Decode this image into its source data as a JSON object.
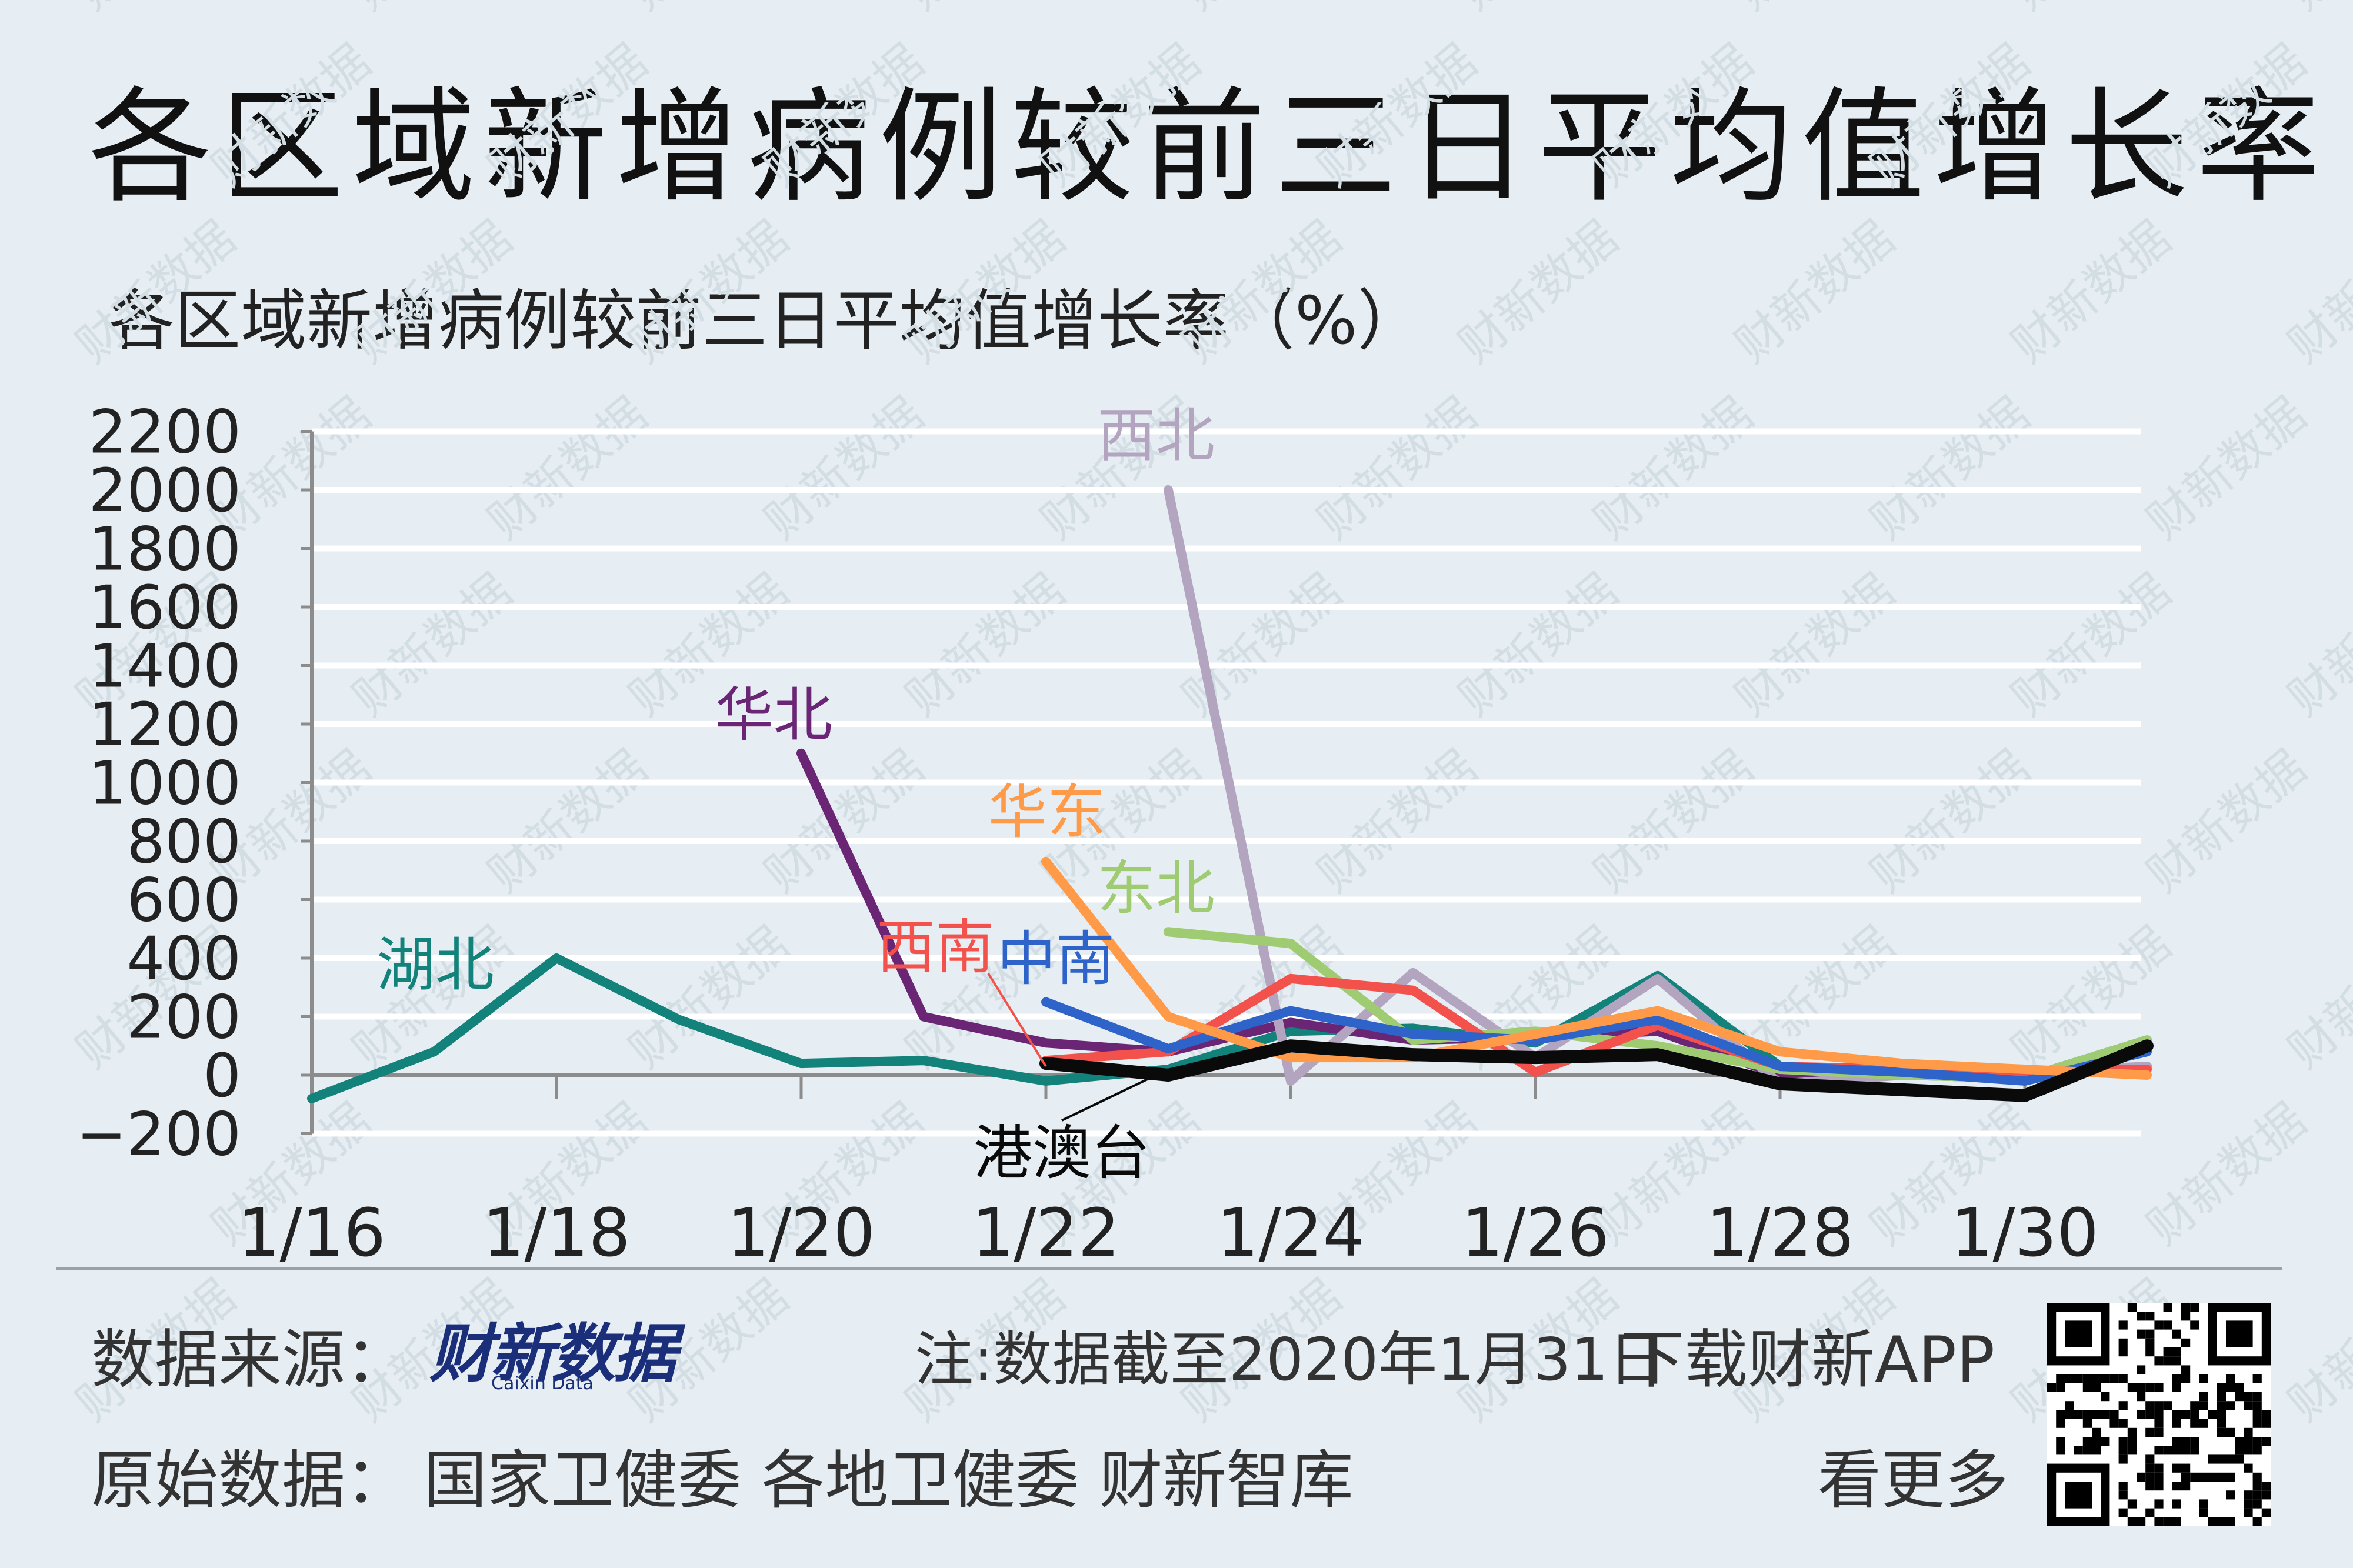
{
  "header": {
    "title": "各区域新增病例较前三日平均值增长率",
    "subtitle": "各区域新增病例较前三日平均值增长率（%）"
  },
  "chart_data": {
    "type": "line",
    "title": "各区域新增病例较前三日平均值增长率",
    "ylabel": "各区域新增病例较前三日平均值增长率（%）",
    "xlabel": "",
    "ylim": [
      -200,
      2200
    ],
    "yticks": [
      -200,
      0,
      200,
      400,
      600,
      800,
      1000,
      1200,
      1400,
      1600,
      1800,
      2000,
      2200
    ],
    "xlim": [
      "1/16",
      "1/31"
    ],
    "xtick_labels": [
      "1/16",
      "1/18",
      "1/20",
      "1/22",
      "1/24",
      "1/26",
      "1/28",
      "1/30"
    ],
    "grid": "horizontal",
    "legend": "inline labels",
    "series": [
      {
        "name": "湖北",
        "color": "#13827a",
        "points": [
          [
            "1/16",
            -80
          ],
          [
            "1/17",
            80
          ],
          [
            "1/18",
            400
          ],
          [
            "1/19",
            190
          ],
          [
            "1/20",
            40
          ],
          [
            "1/21",
            50
          ],
          [
            "1/22",
            -20
          ],
          [
            "1/23",
            20
          ],
          [
            "1/24",
            150
          ],
          [
            "1/25",
            160
          ],
          [
            "1/26",
            110
          ],
          [
            "1/27",
            340
          ],
          [
            "1/28",
            30
          ],
          [
            "1/29",
            0
          ],
          [
            "1/30",
            -10
          ],
          [
            "1/31",
            120
          ]
        ]
      },
      {
        "name": "华北",
        "color": "#6a2574",
        "points": [
          [
            "1/20",
            1100
          ],
          [
            "1/21",
            200
          ],
          [
            "1/22",
            110
          ],
          [
            "1/23",
            80
          ],
          [
            "1/24",
            180
          ],
          [
            "1/25",
            120
          ],
          [
            "1/26",
            130
          ],
          [
            "1/27",
            150
          ],
          [
            "1/28",
            0
          ],
          [
            "1/29",
            20
          ],
          [
            "1/30",
            0
          ],
          [
            "1/31",
            30
          ]
        ]
      },
      {
        "name": "西北",
        "color": "#b3a4bf",
        "points": [
          [
            "1/23",
            2000
          ],
          [
            "1/24",
            -20
          ],
          [
            "1/25",
            350
          ],
          [
            "1/26",
            60
          ],
          [
            "1/27",
            330
          ],
          [
            "1/28",
            -30
          ],
          [
            "1/29",
            0
          ],
          [
            "1/30",
            10
          ],
          [
            "1/31",
            30
          ]
        ]
      },
      {
        "name": "东北",
        "color": "#9fcc72",
        "points": [
          [
            "1/23",
            490
          ],
          [
            "1/24",
            450
          ],
          [
            "1/25",
            120
          ],
          [
            "1/26",
            150
          ],
          [
            "1/27",
            100
          ],
          [
            "1/28",
            20
          ],
          [
            "1/29",
            0
          ],
          [
            "1/30",
            -10
          ],
          [
            "1/31",
            120
          ]
        ]
      },
      {
        "name": "西南",
        "color": "#f2524b",
        "points": [
          [
            "1/22",
            50
          ],
          [
            "1/23",
            80
          ],
          [
            "1/24",
            330
          ],
          [
            "1/25",
            290
          ],
          [
            "1/26",
            10
          ],
          [
            "1/27",
            170
          ],
          [
            "1/28",
            30
          ],
          [
            "1/29",
            20
          ],
          [
            "1/30",
            10
          ],
          [
            "1/31",
            20
          ]
        ]
      },
      {
        "name": "中南",
        "color": "#2e63c9",
        "points": [
          [
            "1/22",
            250
          ],
          [
            "1/23",
            90
          ],
          [
            "1/24",
            220
          ],
          [
            "1/25",
            140
          ],
          [
            "1/26",
            120
          ],
          [
            "1/27",
            190
          ],
          [
            "1/28",
            30
          ],
          [
            "1/29",
            10
          ],
          [
            "1/30",
            -20
          ],
          [
            "1/31",
            80
          ]
        ]
      },
      {
        "name": "华东",
        "color": "#ff9a48",
        "points": [
          [
            "1/22",
            730
          ],
          [
            "1/23",
            200
          ],
          [
            "1/24",
            60
          ],
          [
            "1/25",
            60
          ],
          [
            "1/26",
            140
          ],
          [
            "1/27",
            220
          ],
          [
            "1/28",
            80
          ],
          [
            "1/29",
            40
          ],
          [
            "1/30",
            20
          ],
          [
            "1/31",
            0
          ]
        ]
      },
      {
        "name": "港澳台",
        "color": "#0a0a0a",
        "points": [
          [
            "1/22",
            40
          ],
          [
            "1/23",
            0
          ],
          [
            "1/24",
            100
          ],
          [
            "1/25",
            70
          ],
          [
            "1/26",
            60
          ],
          [
            "1/27",
            70
          ],
          [
            "1/28",
            -30
          ],
          [
            "1/29",
            -50
          ],
          [
            "1/30",
            -70
          ],
          [
            "1/31",
            100
          ]
        ]
      }
    ]
  },
  "footer": {
    "source_label": "数据来源：",
    "brand_name": "财新数据",
    "brand_sub": "Caixin Data",
    "note": "注:数据截至2020年1月31日",
    "download": "下载财新APP",
    "raw_label": "原始数据：",
    "raw_sources": "国家卫健委 各地卫健委 财新智库",
    "see_more": "看更多",
    "watermark": "财新数据"
  },
  "colors": {
    "background": "#e6eef3",
    "grid": "#ffffff",
    "axis": "#8c8c8c",
    "brand": "#1b2e7a"
  },
  "icons": {
    "qr": "qr-code"
  }
}
